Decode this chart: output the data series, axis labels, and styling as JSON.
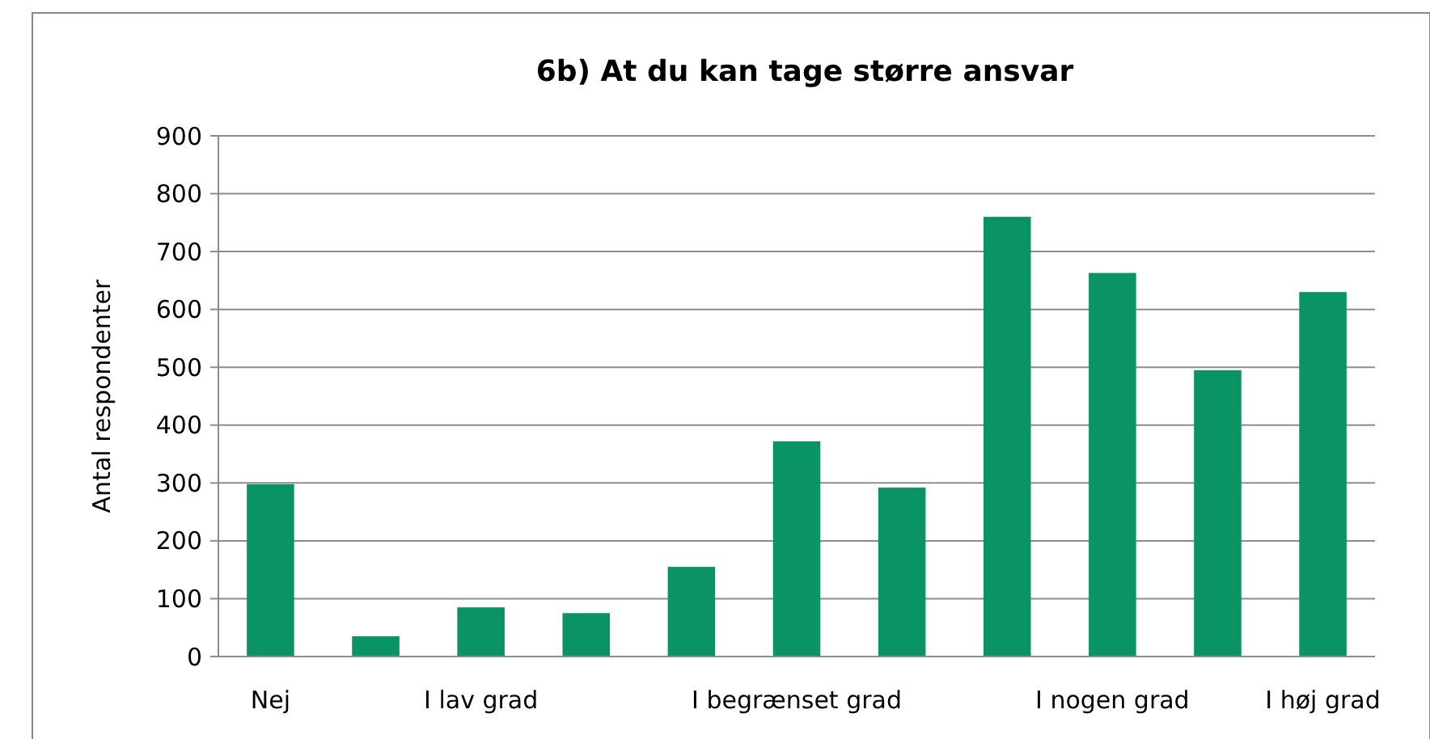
{
  "chart_data": {
    "type": "bar",
    "title": "6b) At du kan tage større ansvar",
    "ylabel": "Antal respondenter",
    "categories": [
      "Nej",
      null,
      "I lav grad",
      null,
      null,
      "I begrænset grad",
      null,
      null,
      "I nogen grad",
      null,
      "I høj grad"
    ],
    "values": [
      298,
      35,
      85,
      75,
      155,
      372,
      292,
      760,
      663,
      495,
      630
    ],
    "color": "#0a9464",
    "ylim": [
      0,
      900
    ],
    "yticks": [
      0,
      100,
      200,
      300,
      400,
      500,
      600,
      700,
      800,
      900
    ],
    "grid": "y"
  }
}
